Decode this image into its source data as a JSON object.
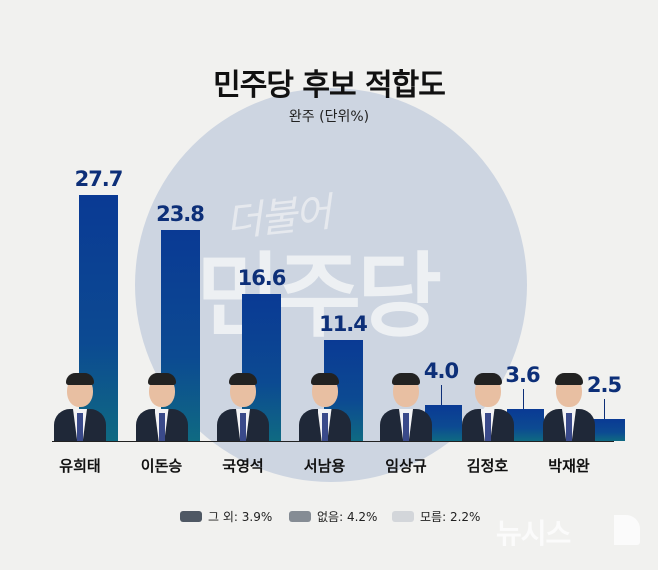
{
  "header": {
    "title": "민주당 후보 적합도",
    "subtitle": "완주 (단위%)"
  },
  "watermark": {
    "small": "더불어",
    "big": "민주당"
  },
  "chart_data": {
    "type": "bar",
    "title": "민주당 후보 적합도",
    "subtitle": "완주 (단위%)",
    "xlabel": "",
    "ylabel": "%",
    "categories": [
      "유희태",
      "이돈승",
      "국영석",
      "서남용",
      "임상규",
      "김정호",
      "박재완"
    ],
    "values": [
      27.7,
      23.8,
      16.6,
      11.4,
      4.0,
      3.6,
      2.5
    ],
    "value_labels": [
      "27.7",
      "23.8",
      "16.6",
      "11.4",
      "4.0",
      "3.6",
      "2.5"
    ],
    "ylim": [
      0,
      30
    ],
    "grid": false,
    "others": [
      {
        "label": "그 외",
        "value": 3.9,
        "text": "그 외: 3.9%",
        "color": "#4f5864"
      },
      {
        "label": "없음",
        "value": 4.2,
        "text": "없음: 4.2%",
        "color": "#858c94"
      },
      {
        "label": "모름",
        "value": 2.2,
        "text": "모름: 2.2%",
        "color": "#d3d6da"
      }
    ],
    "legend_position": "bottom"
  },
  "colors": {
    "background": "#f1f1ef",
    "circle": "#cdd5e1",
    "bar_top": "#0a3a94",
    "bar_bottom": "#0f6a82",
    "value_text": "#0d2f78"
  },
  "logo": {
    "text": "뉴시스"
  }
}
